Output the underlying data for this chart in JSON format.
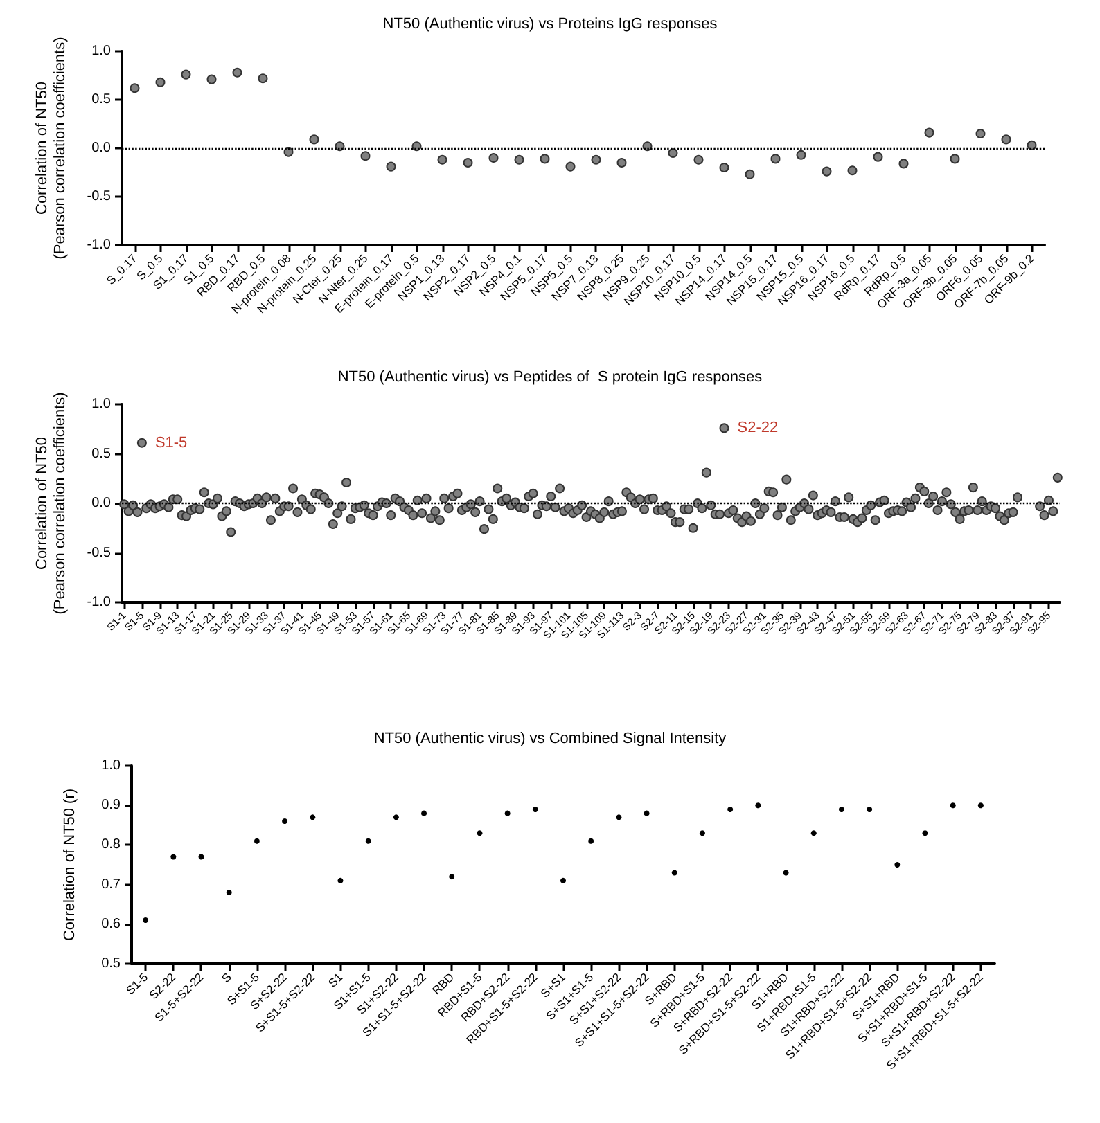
{
  "chart_data": [
    {
      "type": "scatter",
      "title": "NT50 (Authentic virus) vs Proteins IgG responses",
      "ylabel": "Correlation of NT50\n(Pearson correlation coefficients)",
      "categories": [
        "S_0.17",
        "S_0.5",
        "S1_0.17",
        "S1_0.5",
        "RBD_0.17",
        "RBD_0.5",
        "N-protein_0.08",
        "N-protein_0.25",
        "N-Cter_0.25",
        "N-Nter_0.25",
        "E-protein_0.17",
        "E-protein_0.5",
        "NSP1_0.13",
        "NSP2_0.17",
        "NSP2_0.5",
        "NSP4_0.1",
        "NSP5_0.17",
        "NSP5_0.5",
        "NSP7_0.13",
        "NSP8_0.25",
        "NSP9_0.25",
        "NSP10_0.17",
        "NSP10_0.5",
        "NSP14_0.17",
        "NSP14_0.5",
        "NSP15_0.17",
        "NSP15_0.5",
        "NSP16_0.17",
        "NSP16_0.5",
        "RdRp_0.17",
        "RdRp_0.5",
        "ORF-3a_0.05",
        "ORF-3b_0.05",
        "ORF6_0.05",
        "ORF-7b_0.05",
        "ORF-9b_0.2"
      ],
      "values": [
        0.62,
        0.68,
        0.76,
        0.71,
        0.78,
        0.72,
        -0.04,
        0.09,
        0.02,
        -0.08,
        -0.19,
        0.02,
        -0.12,
        -0.15,
        -0.1,
        -0.12,
        -0.11,
        -0.19,
        -0.12,
        -0.15,
        0.02,
        -0.05,
        -0.12,
        -0.2,
        -0.27,
        -0.11,
        -0.07,
        -0.24,
        -0.23,
        -0.09,
        -0.16,
        0.16,
        -0.11,
        0.15,
        0.09,
        0.03
      ],
      "color": "#808080",
      "marker": "circle",
      "ylim": [
        -1,
        1
      ],
      "yticks": [
        {
          "value": -1,
          "label": "-1.0"
        },
        {
          "value": -0.5,
          "label": "-0.5"
        },
        {
          "value": 0,
          "label": "0.0"
        },
        {
          "value": 0.5,
          "label": "0.5"
        },
        {
          "value": 1,
          "label": "1.0"
        }
      ],
      "ref_lines": [
        {
          "axis": "y",
          "value": 0,
          "line_style": "dotted"
        }
      ]
    },
    {
      "type": "scatter",
      "title": "NT50 (Authentic virus) vs Peptides of  S protein IgG responses",
      "ylabel": "Correlation of NT50\n(Pearson correlation coefficients)",
      "categories": [
        "S1-1",
        null,
        null,
        null,
        "S1-5",
        null,
        null,
        null,
        "S1-9",
        null,
        null,
        null,
        "S1-13",
        null,
        null,
        null,
        "S1-17",
        null,
        null,
        null,
        "S1-21",
        null,
        null,
        null,
        "S1-25",
        null,
        null,
        null,
        "S1-29",
        null,
        null,
        null,
        "S1-33",
        null,
        null,
        null,
        "S1-37",
        null,
        null,
        null,
        "S1-41",
        null,
        null,
        null,
        "S1-45",
        null,
        null,
        null,
        "S1-49",
        null,
        null,
        null,
        "S1-53",
        null,
        null,
        null,
        "S1-57",
        null,
        null,
        null,
        "S1-61",
        null,
        null,
        null,
        "S1-65",
        null,
        null,
        null,
        "S1-69",
        null,
        null,
        null,
        "S1-73",
        null,
        null,
        null,
        "S1-77",
        null,
        null,
        null,
        "S1-81",
        null,
        null,
        null,
        "S1-85",
        null,
        null,
        null,
        "S1-89",
        null,
        null,
        null,
        "S1-93",
        null,
        null,
        null,
        "S1-97",
        null,
        null,
        null,
        "S1-101",
        null,
        null,
        null,
        "S1-105",
        null,
        null,
        null,
        "S1-109",
        null,
        null,
        null,
        "S1-113",
        null,
        null,
        null,
        "S2-3",
        null,
        null,
        null,
        "S2-7",
        null,
        null,
        null,
        "S2-11",
        null,
        null,
        null,
        "S2-15",
        null,
        null,
        null,
        "S2-19",
        null,
        null,
        null,
        "S2-23",
        null,
        null,
        null,
        "S2-27",
        null,
        null,
        null,
        "S2-31",
        null,
        null,
        null,
        "S2-35",
        null,
        null,
        null,
        "S2-39",
        null,
        null,
        null,
        "S2-43",
        null,
        null,
        null,
        "S2-47",
        null,
        null,
        null,
        "S2-51",
        null,
        null,
        null,
        "S2-55",
        null,
        null,
        null,
        "S2-59",
        null,
        null,
        null,
        "S2-63",
        null,
        null,
        null,
        "S2-67",
        null,
        null,
        null,
        "S2-71",
        null,
        null,
        null,
        "S2-75",
        null,
        null,
        null,
        "S2-79",
        null,
        null,
        null,
        "S2-83",
        null,
        null,
        null,
        "S2-87",
        null,
        null,
        null,
        "S2-91",
        null,
        null,
        null,
        "S2-95",
        null,
        null
      ],
      "values": [
        -0.01,
        -0.08,
        -0.02,
        -0.09,
        0.61,
        -0.05,
        -0.01,
        -0.05,
        -0.03,
        -0.01,
        -0.04,
        0.04,
        0.04,
        -0.12,
        -0.13,
        -0.07,
        -0.05,
        -0.06,
        0.11,
        0.0,
        -0.01,
        0.05,
        -0.13,
        -0.08,
        -0.29,
        0.02,
        0.0,
        -0.03,
        -0.01,
        0.0,
        0.05,
        0.0,
        0.06,
        -0.17,
        0.05,
        -0.08,
        -0.03,
        -0.03,
        0.15,
        -0.09,
        0.04,
        -0.02,
        -0.06,
        0.1,
        0.09,
        0.06,
        0.0,
        -0.21,
        -0.1,
        -0.03,
        0.21,
        -0.16,
        -0.05,
        -0.04,
        -0.02,
        -0.1,
        -0.12,
        -0.03,
        0.01,
        0.0,
        -0.12,
        0.05,
        0.02,
        -0.04,
        -0.07,
        -0.12,
        0.03,
        -0.1,
        0.05,
        -0.15,
        -0.08,
        -0.17,
        0.05,
        -0.05,
        0.07,
        0.1,
        -0.07,
        -0.04,
        -0.01,
        -0.09,
        0.02,
        -0.26,
        -0.06,
        -0.16,
        0.15,
        0.02,
        0.05,
        -0.02,
        0.01,
        -0.04,
        -0.05,
        0.07,
        0.1,
        -0.11,
        -0.02,
        -0.03,
        0.07,
        -0.04,
        0.15,
        -0.08,
        -0.05,
        -0.1,
        -0.07,
        -0.02,
        -0.14,
        -0.08,
        -0.11,
        -0.15,
        -0.09,
        0.02,
        -0.11,
        -0.09,
        -0.08,
        0.11,
        0.06,
        0.0,
        0.04,
        -0.06,
        0.04,
        0.05,
        -0.07,
        -0.07,
        -0.03,
        -0.1,
        -0.19,
        -0.19,
        -0.06,
        -0.06,
        -0.25,
        0.0,
        -0.05,
        0.31,
        -0.02,
        -0.11,
        -0.11,
        0.76,
        -0.1,
        -0.07,
        -0.15,
        -0.19,
        -0.13,
        -0.18,
        0.0,
        -0.11,
        -0.05,
        0.12,
        0.11,
        -0.12,
        -0.04,
        0.24,
        -0.17,
        -0.08,
        -0.04,
        0.0,
        -0.06,
        0.08,
        -0.12,
        -0.1,
        -0.07,
        -0.09,
        0.02,
        -0.14,
        -0.14,
        0.06,
        -0.16,
        -0.19,
        -0.15,
        -0.07,
        -0.02,
        -0.17,
        0.01,
        0.03,
        -0.1,
        -0.08,
        -0.07,
        -0.08,
        0.01,
        -0.04,
        0.05,
        0.16,
        0.12,
        0.0,
        0.07,
        -0.07,
        0.02,
        0.11,
        -0.01,
        -0.09,
        -0.16,
        -0.08,
        -0.07,
        0.16,
        -0.07,
        0.02,
        -0.07,
        -0.03,
        -0.05,
        -0.13,
        -0.17,
        -0.1,
        -0.09,
        0.06,
        null,
        null,
        null,
        null,
        -0.03,
        -0.12,
        0.03,
        -0.08,
        0.26
      ],
      "color": "#808080",
      "marker": "circle",
      "ylim": [
        -1,
        1
      ],
      "yticks": [
        {
          "value": -1,
          "label": "-1.0"
        },
        {
          "value": -0.5,
          "label": "-0.5"
        },
        {
          "value": 0,
          "label": "0.0"
        },
        {
          "value": 0.5,
          "label": "0.5"
        },
        {
          "value": 1,
          "label": "1.0"
        }
      ],
      "ref_lines": [
        {
          "axis": "y",
          "value": 0,
          "line_style": "dotted"
        }
      ],
      "value_labels": [
        null,
        null,
        null,
        null,
        "S1-5",
        null,
        null,
        null,
        null,
        null,
        null,
        null,
        null,
        null,
        null,
        null,
        null,
        null,
        null,
        null,
        null,
        null,
        null,
        null,
        null,
        null,
        null,
        null,
        null,
        null,
        null,
        null,
        null,
        null,
        null,
        null,
        null,
        null,
        null,
        null,
        null,
        null,
        null,
        null,
        null,
        null,
        null,
        null,
        null,
        null,
        null,
        null,
        null,
        null,
        null,
        null,
        null,
        null,
        null,
        null,
        null,
        null,
        null,
        null,
        null,
        null,
        null,
        null,
        null,
        null,
        null,
        null,
        null,
        null,
        null,
        null,
        null,
        null,
        null,
        null,
        null,
        null,
        null,
        null,
        null,
        null,
        null,
        null,
        null,
        null,
        null,
        null,
        null,
        null,
        null,
        null,
        null,
        null,
        null,
        null,
        null,
        null,
        null,
        null,
        null,
        null,
        null,
        null,
        null,
        null,
        null,
        null,
        null,
        null,
        null,
        null,
        null,
        null,
        null,
        null,
        null,
        null,
        null,
        null,
        null,
        null,
        null,
        null,
        null,
        null,
        null,
        null,
        null,
        null,
        null,
        "S2-22",
        null,
        null,
        null,
        null,
        null,
        null,
        null,
        null,
        null,
        null,
        null,
        null,
        null,
        null,
        null,
        null,
        null,
        null,
        null,
        null,
        null,
        null,
        null,
        null,
        null,
        null,
        null,
        null,
        null,
        null,
        null,
        null,
        null,
        null,
        null,
        null,
        null,
        null,
        null,
        null,
        null,
        null,
        null,
        null,
        null,
        null,
        null,
        null,
        null,
        null,
        null,
        null,
        null,
        null,
        null,
        null,
        null,
        null,
        null,
        null,
        null,
        null,
        null,
        null,
        null,
        null,
        null,
        null,
        null,
        null,
        null,
        null,
        null,
        null,
        null
      ]
    },
    {
      "type": "scatter",
      "title": "NT50 (Authentic virus) vs Combined Signal Intensity",
      "ylabel": "Correlation of NT50 (r)",
      "categories": [
        "S1-5",
        "S2-22",
        "S1-5+S2-22",
        "S",
        "S+S1-5",
        "S+S2-22",
        "S+S1-5+S2-22",
        "S1",
        "S1+S1-5",
        "S1+S2-22",
        "S1+S1-5+S2-22",
        "RBD",
        "RBD+S1-5",
        "RBD+S2-22",
        "RBD+S1-5+S2-22",
        "S+S1",
        "S+S1+S1-5",
        "S+S1+S2-22",
        "S+S1+S1-5+S2-22",
        "S+RBD",
        "S+RBD+S1-5",
        "S+RBD+S2-22",
        "S+RBD+S1-5+S2-22",
        "S1+RBD",
        "S1+RBD+S1-5",
        "S1+RBD+S2-22",
        "S1+RBD+S1-5+S2-22",
        "S+S1+RBD",
        "S+S1+RBD+S1-5",
        "S+S1+RBD+S2-22",
        "S+S1+RBD+S1-5+S2-22"
      ],
      "values": [
        0.61,
        0.77,
        0.77,
        0.68,
        0.81,
        0.86,
        0.87,
        0.71,
        0.81,
        0.87,
        0.88,
        0.72,
        0.83,
        0.88,
        0.89,
        0.71,
        0.81,
        0.87,
        0.88,
        0.73,
        0.83,
        0.89,
        0.9,
        0.73,
        0.83,
        0.89,
        0.89,
        0.75,
        0.83,
        0.9,
        0.9
      ],
      "color": "#000000",
      "marker": "circle",
      "ylim": [
        0.5,
        1
      ],
      "yticks": [
        {
          "value": 0.5,
          "label": "0.5"
        },
        {
          "value": 0.6,
          "label": "0.6"
        },
        {
          "value": 0.7,
          "label": "0.7"
        },
        {
          "value": 0.8,
          "label": "0.8"
        },
        {
          "value": 0.9,
          "label": "0.9"
        },
        {
          "value": 1,
          "label": "1.0"
        }
      ]
    }
  ]
}
